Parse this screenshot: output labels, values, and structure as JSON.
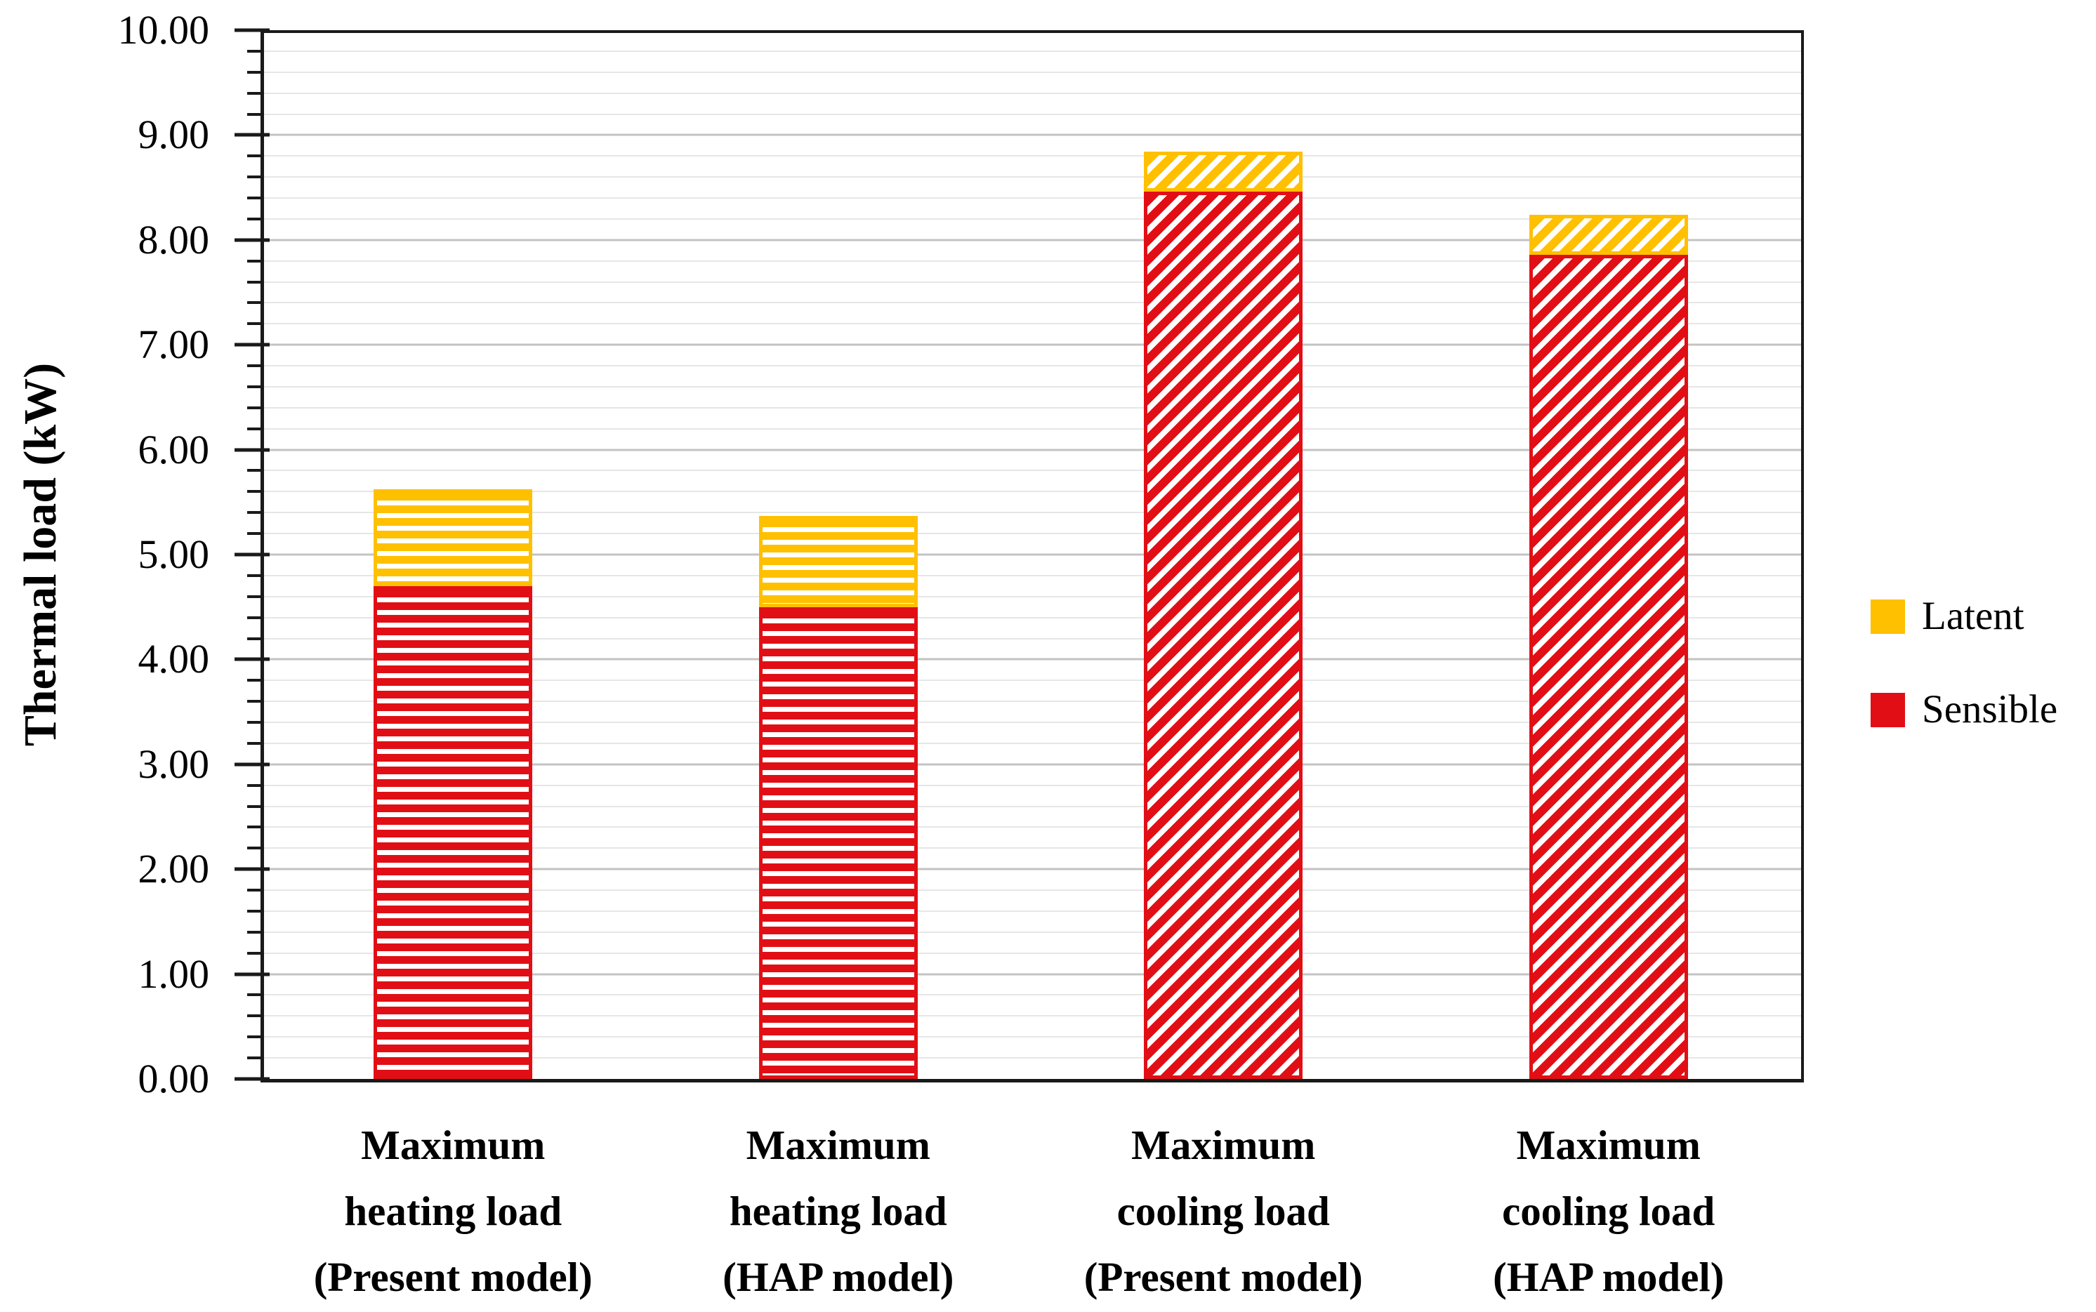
{
  "y_axis": {
    "title": "Thermal load (kW)",
    "min": 0,
    "max": 10,
    "major_step": 1,
    "minor_step": 0.2,
    "tick_labels": [
      "0.00",
      "1.00",
      "2.00",
      "3.00",
      "4.00",
      "5.00",
      "6.00",
      "7.00",
      "8.00",
      "9.00",
      "10.00"
    ]
  },
  "legend": {
    "position": "right",
    "items": [
      {
        "label": "Latent",
        "swatch_color": "#FFC000"
      },
      {
        "label": "Sensible",
        "swatch_color": "#E10F15"
      }
    ]
  },
  "chart_data": {
    "type": "bar",
    "stacked": true,
    "title": "",
    "xlabel": "",
    "ylabel": "Thermal load (kW)",
    "ylim": [
      0,
      10
    ],
    "grid": "horizontal; minor every 0.2 (light gray), major every 1.0 (darker gray)",
    "legend_position": "right",
    "categories": [
      "Maximum\nheating load\n(Present model)",
      "Maximum\nheating load\n(HAP model)",
      "Maximum\ncooling load\n(Present model)",
      "Maximum\ncooling load\n(HAP model)"
    ],
    "hatch_by_category": [
      "horizontal-stripes",
      "horizontal-stripes",
      "diagonal-stripes",
      "diagonal-stripes"
    ],
    "series": [
      {
        "name": "Sensible",
        "color": "#E10F15",
        "values": [
          4.7,
          4.5,
          8.46,
          7.86
        ]
      },
      {
        "name": "Latent",
        "color": "#FFC000",
        "values": [
          0.92,
          0.87,
          0.38,
          0.38
        ]
      }
    ],
    "stack_totals": [
      5.62,
      5.37,
      8.84,
      8.24
    ]
  }
}
